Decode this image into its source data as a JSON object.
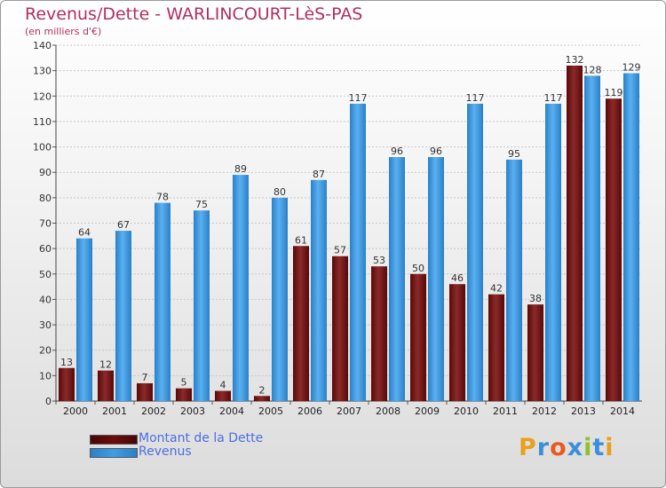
{
  "title": "Revenus/Dette - WARLINCOURT-LèS-PAS",
  "subtitle": "(en milliers d'€)",
  "colors": {
    "dette": "#7a1717",
    "revenus": "#3f9ee6",
    "title": "#b03060",
    "legend_text": "#4b6fe0"
  },
  "legend": [
    {
      "label": "Montant de la Dette",
      "color": "#6b0c0c"
    },
    {
      "label": "Revenus",
      "color": "#3f9ee6"
    }
  ],
  "logo": {
    "text": "Proxiti",
    "icon": "proxiti-logo"
  },
  "chart_data": {
    "type": "bar",
    "title": "Revenus/Dette - WARLINCOURT-LèS-PAS",
    "subtitle": "(en milliers d'€)",
    "categories": [
      "2000",
      "2001",
      "2002",
      "2003",
      "2004",
      "2005",
      "2006",
      "2007",
      "2008",
      "2009",
      "2010",
      "2011",
      "2012",
      "2013",
      "2014"
    ],
    "series": [
      {
        "name": "Montant de la Dette",
        "values": [
          13,
          12,
          7,
          5,
          4,
          2,
          61,
          57,
          53,
          50,
          46,
          42,
          38,
          132,
          119
        ]
      },
      {
        "name": "Revenus",
        "values": [
          64,
          67,
          78,
          75,
          89,
          80,
          87,
          117,
          96,
          96,
          117,
          95,
          117,
          128,
          129
        ]
      }
    ],
    "ylim": [
      0,
      140
    ],
    "yticks": [
      0,
      10,
      20,
      30,
      40,
      50,
      60,
      70,
      80,
      90,
      100,
      110,
      120,
      130,
      140
    ],
    "grid": true,
    "legend_position": "bottom-left"
  }
}
